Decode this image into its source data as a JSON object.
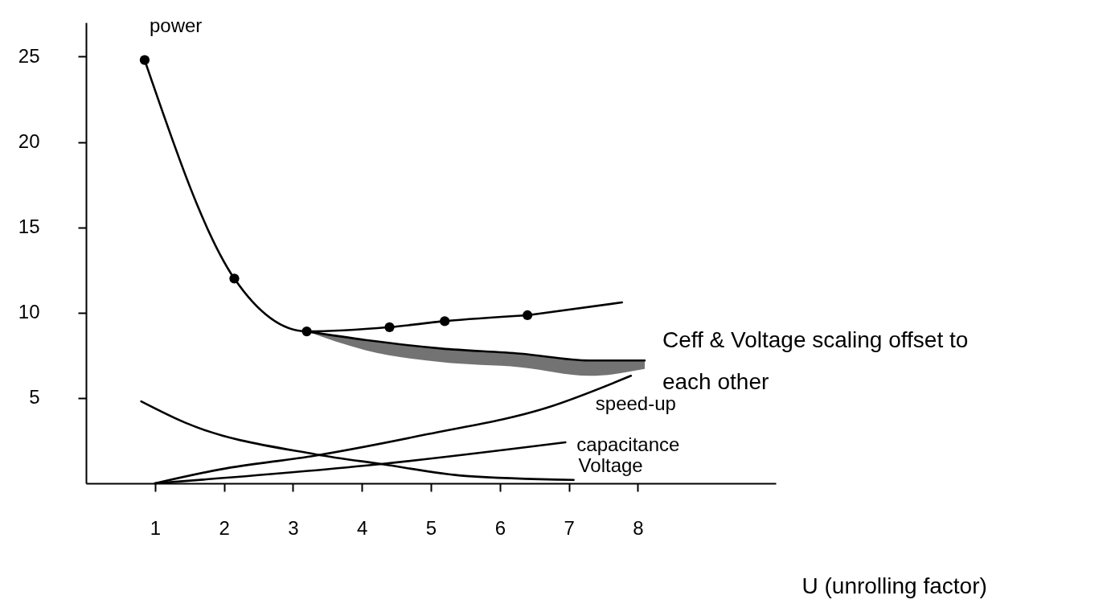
{
  "chart_data": {
    "type": "line",
    "xlabel": "U (unrolling factor)",
    "xlim": [
      0,
      10
    ],
    "xticks": [
      1,
      2,
      3,
      4,
      5,
      6,
      7,
      8
    ],
    "ylim": [
      0,
      27
    ],
    "yticks": [
      5,
      10,
      15,
      20,
      25
    ],
    "grid": false,
    "marker": "none",
    "line_style": "solid",
    "series": [
      {
        "name": "power",
        "color": "#000000",
        "marker": "circle",
        "x": [
          0.85,
          2.15,
          3.2,
          4.4,
          5.2,
          6.4
        ],
        "values": [
          24.8,
          12,
          8.9,
          9.15,
          9.5,
          9.85
        ]
      },
      {
        "color": "#000000",
        "x": [
          6.4,
          7.77
        ],
        "values": [
          9.85,
          10.6
        ]
      },
      {
        "color": "#000000",
        "x": [
          3.2,
          4.05,
          5.15,
          6.3,
          7.3,
          8.1
        ],
        "values": [
          8.9,
          8.4,
          7.9,
          7.6,
          7.2,
          7.2
        ],
        "lower": [
          8.9,
          7.8,
          7.1,
          6.8,
          6.3,
          6.7
        ],
        "upper": [
          8.9,
          8.4,
          7.9,
          7.6,
          7.2,
          7.2
        ]
      },
      {
        "name": "speed-up",
        "color": "#000000",
        "x": [
          1,
          1.95,
          3.33,
          4.94,
          6.68,
          7.9
        ],
        "values": [
          0,
          0.82,
          1.63,
          2.87,
          4.43,
          6.3
        ]
      },
      {
        "name": "capacitance",
        "color": "#000000",
        "x": [
          1,
          4.28,
          6.95
        ],
        "values": [
          0,
          1.13,
          2.4
        ]
      },
      {
        "name": "Voltage",
        "color": "#000000",
        "x": [
          0.8,
          1.44,
          3.33,
          4.28,
          5.51,
          7.07
        ],
        "values": [
          4.8,
          3.55,
          1.7,
          1.13,
          0.43,
          0.2
        ]
      }
    ],
    "annotations": [
      {
        "text": "Ceff & Voltage scaling offset to each other",
        "x": 8.1,
        "y": 7.2
      }
    ]
  }
}
